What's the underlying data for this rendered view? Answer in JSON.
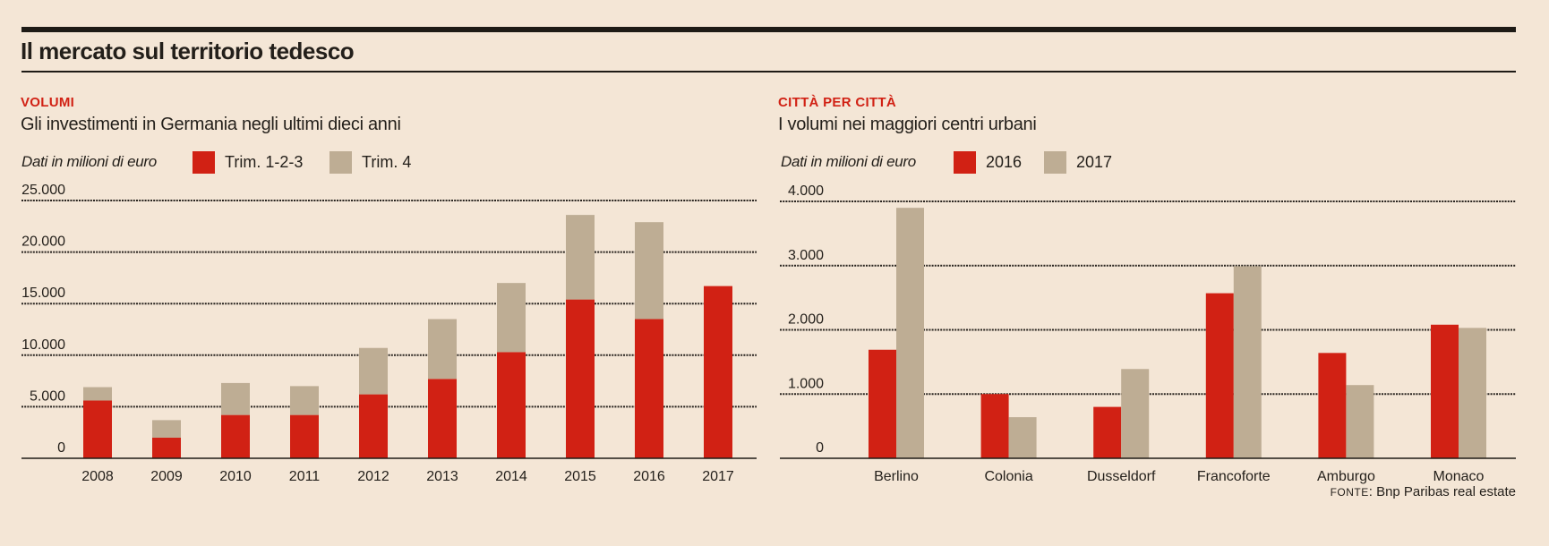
{
  "header": {
    "title": "Il mercato sul territorio tedesco"
  },
  "left_panel": {
    "kicker": "VOLUMI",
    "subtitle": "Gli investimenti in Germania negli ultimi dieci anni",
    "units": "Dati in milioni di euro",
    "legend": [
      {
        "label": "Trim. 1-2-3",
        "color": "#D12114"
      },
      {
        "label": "Trim. 4",
        "color": "#BEAD94"
      }
    ]
  },
  "right_panel": {
    "kicker": "CITTÀ PER CITTÀ",
    "subtitle": "I volumi nei maggiori centri urbani",
    "units": "Dati in milioni di euro",
    "legend": [
      {
        "label": "2016",
        "color": "#D12114"
      },
      {
        "label": "2017",
        "color": "#BEAD94"
      }
    ]
  },
  "source": {
    "prefix": "FONTE",
    "text": ": Bnp Paribas real estate"
  },
  "chart_data": [
    {
      "type": "bar",
      "stacked": true,
      "title": "Gli investimenti in Germania negli ultimi dieci anni",
      "xlabel": "",
      "ylabel": "Dati in milioni di euro",
      "categories": [
        "2008",
        "2009",
        "2010",
        "2011",
        "2012",
        "2013",
        "2014",
        "2015",
        "2016",
        "2017"
      ],
      "series": [
        {
          "name": "Trim. 1-2-3",
          "color": "#D12114",
          "values": [
            5600,
            2000,
            4200,
            4200,
            6200,
            7700,
            10300,
            15400,
            13500,
            16700
          ]
        },
        {
          "name": "Trim. 4",
          "color": "#BEAD94",
          "values": [
            1300,
            1700,
            3100,
            2800,
            4500,
            5800,
            6700,
            8200,
            9400,
            0
          ]
        }
      ],
      "ylim": [
        0,
        25000
      ],
      "yticks": [
        0,
        5000,
        10000,
        15000,
        20000,
        25000
      ],
      "ytick_labels": [
        "0",
        "5.000",
        "10.000",
        "15.000",
        "20.000",
        "25.000"
      ],
      "grid": true,
      "legend": "top-left"
    },
    {
      "type": "bar",
      "stacked": false,
      "title": "I volumi nei maggiori centri urbani",
      "xlabel": "",
      "ylabel": "Dati in milioni di euro",
      "categories": [
        "Berlino",
        "Colonia",
        "Dusseldorf",
        "Francoforte",
        "Amburgo",
        "Monaco"
      ],
      "series": [
        {
          "name": "2016",
          "color": "#D12114",
          "values": [
            1690,
            1000,
            800,
            2570,
            1640,
            2080
          ]
        },
        {
          "name": "2017",
          "color": "#BEAD94",
          "values": [
            3900,
            640,
            1390,
            2990,
            1140,
            2030
          ]
        }
      ],
      "ylim": [
        0,
        4000
      ],
      "yticks": [
        0,
        1000,
        2000,
        3000,
        4000
      ],
      "ytick_labels": [
        "0",
        "1.000",
        "2.000",
        "3.000",
        "4.000"
      ],
      "grid": true,
      "legend": "top-left"
    }
  ]
}
